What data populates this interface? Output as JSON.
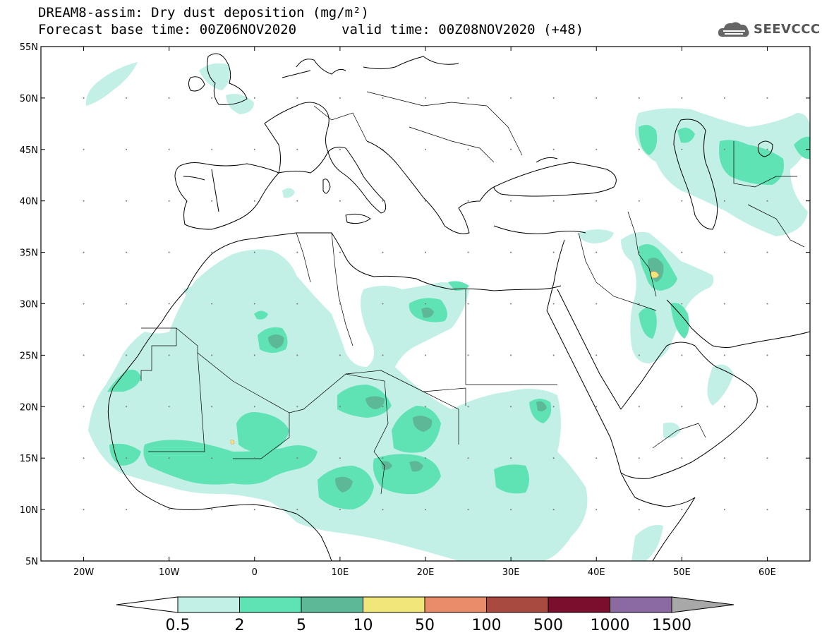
{
  "header": {
    "title": "DREAM8-assim: Dry dust deposition (mg/m²)",
    "base_time": "Forecast base time: 00Z06NOV2020",
    "valid_time": "valid time: 00Z08NOV2020 (+48)",
    "logo_text": "SEEVCCC",
    "logo_icon": "cloud-icon"
  },
  "map": {
    "lon_range": [
      -25,
      65
    ],
    "lat_range": [
      5,
      55
    ],
    "lon_ticks": [
      "20W",
      "10W",
      "0",
      "10E",
      "20E",
      "30E",
      "40E",
      "50E",
      "60E"
    ],
    "lat_ticks": [
      "55N",
      "50N",
      "45N",
      "40N",
      "35N",
      "30N",
      "25N",
      "20N",
      "15N",
      "10N",
      "5N"
    ],
    "grid_dots": true
  },
  "colorbar": {
    "labels": [
      "0.5",
      "2",
      "5",
      "10",
      "50",
      "100",
      "500",
      "1000",
      "1500"
    ],
    "colors": [
      "#c2f0e6",
      "#5fe3b4",
      "#5cb896",
      "#f0e67a",
      "#e88c6a",
      "#a84a40",
      "#7a0e2c",
      "#8a6aa0"
    ],
    "under_color": "#ffffff",
    "over_color": "#a8a8a8"
  },
  "dust_colors": {
    "light": "#c2f0e6",
    "medium": "#5fe3b4",
    "dark": "#5cb896",
    "yellow": "#f0e67a",
    "orange": "#e88c6a"
  }
}
